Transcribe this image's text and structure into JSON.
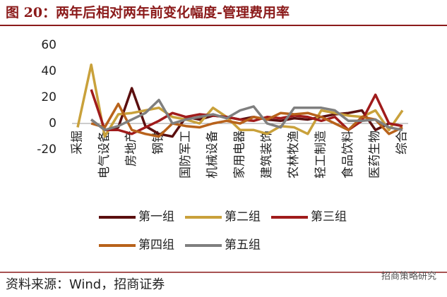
{
  "header": {
    "title": "图 20：两年后相对两年前变化幅度-管理费用率"
  },
  "chart_data": {
    "type": "line",
    "categories": [
      "采掘",
      null,
      "电气设备",
      null,
      "房地产",
      null,
      "钢铁",
      null,
      "国防军工",
      null,
      "机械设备",
      null,
      "家用电器",
      null,
      "建筑装饰",
      null,
      "农林牧渔",
      null,
      "轻工制造",
      null,
      "食品饮料",
      null,
      "医药生物",
      null,
      "综合"
    ],
    "series": [
      {
        "name": "第一组",
        "color": "#5b0f0f",
        "values": [
          null,
          3,
          -5,
          -3,
          27,
          -2,
          -8,
          -10,
          5,
          3,
          6,
          5,
          3,
          5,
          3,
          2,
          4,
          3,
          5,
          7,
          8,
          10,
          -5,
          0,
          -2
        ]
      },
      {
        "name": "第二组",
        "color": "#c9a13b",
        "values": [
          -3,
          45,
          -10,
          7,
          8,
          10,
          12,
          5,
          3,
          0,
          12,
          5,
          -5,
          -5,
          -8,
          -2,
          -3,
          -8,
          10,
          8,
          6,
          5,
          10,
          -5,
          10
        ]
      },
      {
        "name": "第三组",
        "color": "#a01b1b",
        "values": [
          null,
          26,
          -5,
          -5,
          -8,
          -3,
          2,
          8,
          5,
          7,
          6,
          5,
          3,
          2,
          5,
          4,
          6,
          5,
          2,
          5,
          -5,
          2,
          22,
          0,
          -2
        ]
      },
      {
        "name": "第四组",
        "color": "#b8621b",
        "values": [
          null,
          0,
          -3,
          15,
          -5,
          -8,
          -10,
          0,
          -2,
          -3,
          0,
          2,
          0,
          5,
          3,
          8,
          7,
          8,
          5,
          0,
          -5,
          5,
          3,
          -8,
          -3
        ]
      },
      {
        "name": "第五组",
        "color": "#7f7f7f",
        "values": [
          null,
          3,
          -5,
          -2,
          3,
          8,
          18,
          0,
          3,
          5,
          7,
          4,
          10,
          13,
          0,
          -3,
          12,
          12,
          12,
          10,
          2,
          2,
          3,
          -3,
          -5
        ]
      }
    ],
    "ylim": [
      -20,
      60
    ],
    "yticks": [
      -20,
      0,
      20,
      40,
      60
    ]
  },
  "footer": {
    "source": "资料来源：Wind，招商证券",
    "watermark": "招商策略研究"
  }
}
